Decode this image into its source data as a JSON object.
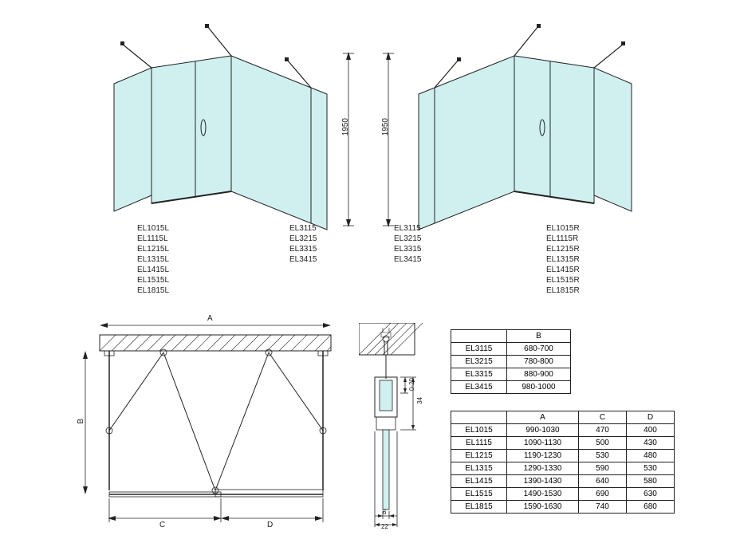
{
  "colors": {
    "glass": "#d0f0f0",
    "glass_stroke": "#7ac5c5",
    "line": "#222222",
    "bg": "#ffffff"
  },
  "height_dim": "1950",
  "left_model_labels": [
    "EL1015L",
    "EL1115L",
    "EL1215L",
    "EL1315L",
    "EL1415L",
    "EL1515L",
    "EL1815L"
  ],
  "left_side_labels": [
    "EL3115",
    "EL3215",
    "EL3315",
    "EL3415"
  ],
  "right_side_labels": [
    "EL3115",
    "EL3215",
    "EL3315",
    "EL3415"
  ],
  "right_model_labels": [
    "EL1015R",
    "EL1115R",
    "EL1215R",
    "EL1315R",
    "EL1415R",
    "EL1515R",
    "EL1815R"
  ],
  "plan_dims": {
    "A": "A",
    "B": "B",
    "C": "C",
    "D": "D"
  },
  "profile_dims": {
    "d1": "0-20",
    "d2": "34",
    "d3": "6",
    "d4": "22"
  },
  "table_b": {
    "header": [
      "",
      "B"
    ],
    "rows": [
      [
        "EL3115",
        "680-700"
      ],
      [
        "EL3215",
        "780-800"
      ],
      [
        "EL3315",
        "880-900"
      ],
      [
        "EL3415",
        "980-1000"
      ]
    ]
  },
  "table_acd": {
    "header": [
      "",
      "A",
      "C",
      "D"
    ],
    "rows": [
      [
        "EL1015",
        "990-1030",
        "470",
        "400"
      ],
      [
        "EL1115",
        "1090-1130",
        "500",
        "430"
      ],
      [
        "EL1215",
        "1190-1230",
        "530",
        "480"
      ],
      [
        "EL1315",
        "1290-1330",
        "590",
        "530"
      ],
      [
        "EL1415",
        "1390-1430",
        "640",
        "580"
      ],
      [
        "EL1515",
        "1490-1530",
        "690",
        "630"
      ],
      [
        "EL1815",
        "1590-1630",
        "740",
        "680"
      ]
    ]
  }
}
